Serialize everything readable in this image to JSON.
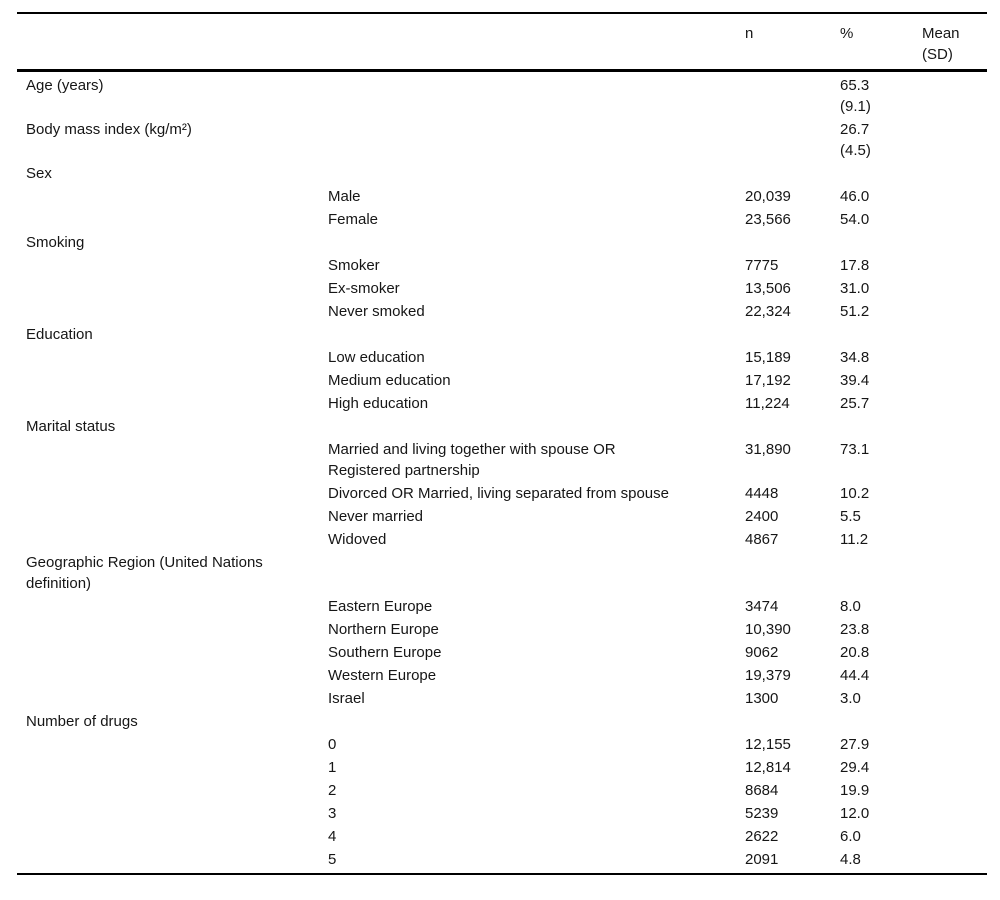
{
  "table": {
    "header": {
      "category": "",
      "item": "",
      "n": "n",
      "pct": "%",
      "mean": "Mean\n(SD)"
    },
    "rows": [
      {
        "cat": "Age (years)",
        "item": "",
        "n": "",
        "pct": "65.3\n(9.1)",
        "mean": ""
      },
      {
        "cat": "Body mass index (kg/m²)",
        "item": "",
        "n": "",
        "pct": "26.7\n(4.5)",
        "mean": ""
      },
      {
        "cat": "Sex",
        "item": "",
        "n": "",
        "pct": "",
        "mean": ""
      },
      {
        "cat": "",
        "item": "Male",
        "n": "20,039",
        "pct": "46.0",
        "mean": ""
      },
      {
        "cat": "",
        "item": "Female",
        "n": "23,566",
        "pct": "54.0",
        "mean": ""
      },
      {
        "cat": "Smoking",
        "item": "",
        "n": "",
        "pct": "",
        "mean": ""
      },
      {
        "cat": "",
        "item": "Smoker",
        "n": "7775",
        "pct": "17.8",
        "mean": ""
      },
      {
        "cat": "",
        "item": "Ex-smoker",
        "n": "13,506",
        "pct": "31.0",
        "mean": ""
      },
      {
        "cat": "",
        "item": "Never smoked",
        "n": "22,324",
        "pct": "51.2",
        "mean": ""
      },
      {
        "cat": "Education",
        "item": "",
        "n": "",
        "pct": "",
        "mean": ""
      },
      {
        "cat": "",
        "item": "Low education",
        "n": "15,189",
        "pct": "34.8",
        "mean": ""
      },
      {
        "cat": "",
        "item": "Medium education",
        "n": "17,192",
        "pct": "39.4",
        "mean": ""
      },
      {
        "cat": "",
        "item": "High education",
        "n": "11,224",
        "pct": "25.7",
        "mean": ""
      },
      {
        "cat": "Marital status",
        "item": "",
        "n": "",
        "pct": "",
        "mean": ""
      },
      {
        "cat": "",
        "item": "Married and living together with spouse OR\nRegistered partnership",
        "n": "31,890",
        "pct": "73.1",
        "mean": ""
      },
      {
        "cat": "",
        "item": "Divorced OR Married, living separated from spouse",
        "n": "4448",
        "pct": "10.2",
        "mean": ""
      },
      {
        "cat": "",
        "item": "Never married",
        "n": "2400",
        "pct": "5.5",
        "mean": ""
      },
      {
        "cat": "",
        "item": "Widoved",
        "n": "4867",
        "pct": "11.2",
        "mean": ""
      },
      {
        "cat": "Geographic Region (United Nations\ndefinition)",
        "item": "",
        "n": "",
        "pct": "",
        "mean": ""
      },
      {
        "cat": "",
        "item": "Eastern Europe",
        "n": "3474",
        "pct": "8.0",
        "mean": ""
      },
      {
        "cat": "",
        "item": "Northern Europe",
        "n": "10,390",
        "pct": "23.8",
        "mean": ""
      },
      {
        "cat": "",
        "item": "Southern Europe",
        "n": "9062",
        "pct": "20.8",
        "mean": ""
      },
      {
        "cat": "",
        "item": "Western Europe",
        "n": "19,379",
        "pct": "44.4",
        "mean": ""
      },
      {
        "cat": "",
        "item": "Israel",
        "n": "1300",
        "pct": "3.0",
        "mean": ""
      },
      {
        "cat": "Number of drugs",
        "item": "",
        "n": "",
        "pct": "",
        "mean": ""
      },
      {
        "cat": "",
        "item": "0",
        "n": "12,155",
        "pct": "27.9",
        "mean": ""
      },
      {
        "cat": "",
        "item": "1",
        "n": "12,814",
        "pct": "29.4",
        "mean": ""
      },
      {
        "cat": "",
        "item": "2",
        "n": "8684",
        "pct": "19.9",
        "mean": ""
      },
      {
        "cat": "",
        "item": "3",
        "n": "5239",
        "pct": "12.0",
        "mean": ""
      },
      {
        "cat": "",
        "item": "4",
        "n": "2622",
        "pct": "6.0",
        "mean": ""
      },
      {
        "cat": "",
        "item": "5",
        "n": "2091",
        "pct": "4.8",
        "mean": ""
      }
    ]
  }
}
